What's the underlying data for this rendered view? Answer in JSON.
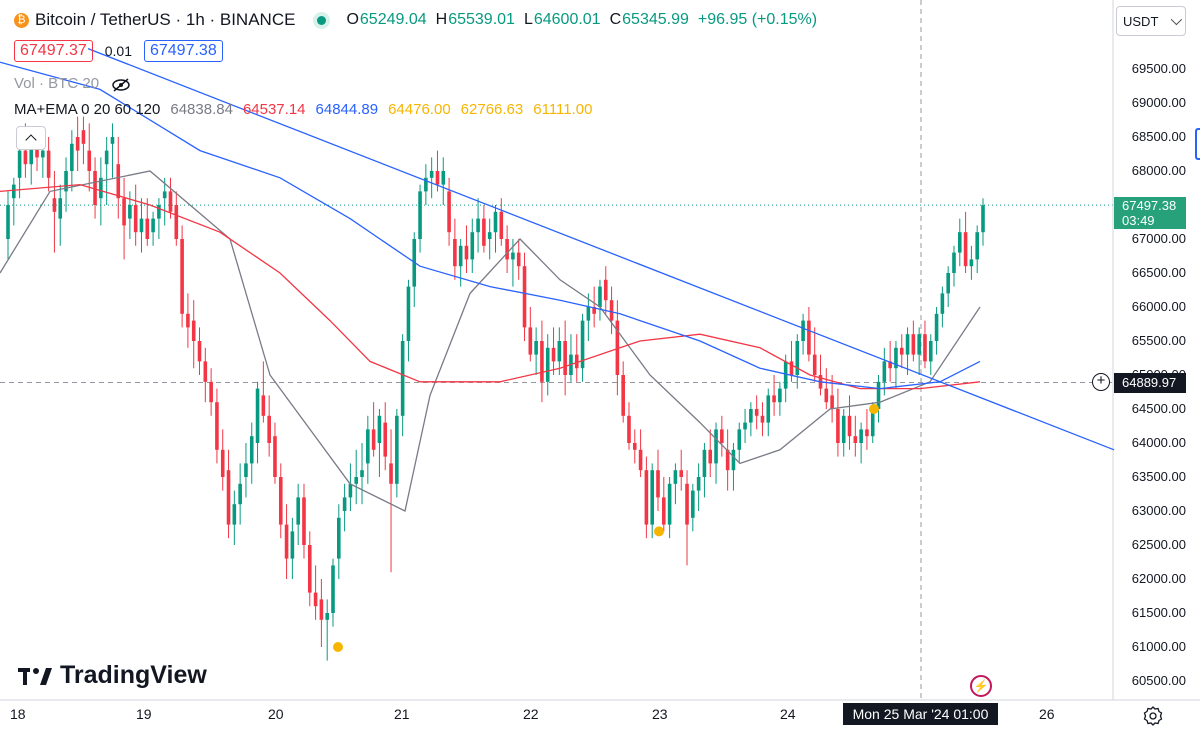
{
  "header": {
    "symbol_title": "Bitcoin / TetherUS · 1h · BINANCE",
    "ohlc": [
      {
        "label": "O",
        "value": "65249.04"
      },
      {
        "label": "H",
        "value": "65539.01"
      },
      {
        "label": "L",
        "value": "64600.01"
      },
      {
        "label": "C",
        "value": "65345.99"
      }
    ],
    "change": "+96.95 (+0.15%)",
    "bid": "67497.37",
    "spread": "0.01",
    "ask": "67497.38"
  },
  "volume_legend": "Vol · BTC 20",
  "indicator": {
    "name": "MA+EMA 0 20 60 120",
    "values": [
      "64838.84",
      "64537.14",
      "64844.89",
      "64476.00",
      "62766.63",
      "61111.00"
    ],
    "colors": [
      "#787b86",
      "#f23645",
      "#2962ff",
      "#f7b500",
      "#f7b500",
      "#f7b500"
    ]
  },
  "currency_button": "USDT",
  "last_price_tag": {
    "price": "67497.38",
    "countdown": "03:49"
  },
  "crosshair_price": "64889.97",
  "crosshair_time": "Mon 25 Mar '24   01:00",
  "brand": "TradingView",
  "colors": {
    "up": "#089981",
    "down": "#f23645",
    "ma20": "#787b86",
    "ma60": "#f23645",
    "ma120": "#2962ff",
    "trendline": "#2962ff",
    "marker": "#f7b500"
  },
  "chart_data": {
    "type": "candlestick",
    "interval": "1h",
    "y_ticks": [
      "69500.00",
      "69000.00",
      "68500.00",
      "68000.00",
      "67500.00",
      "67000.00",
      "66500.00",
      "66000.00",
      "65500.00",
      "65000.00",
      "64500.00",
      "64000.00",
      "63500.00",
      "63000.00",
      "62500.00",
      "62000.00",
      "61500.00",
      "61000.00",
      "60500.00"
    ],
    "ylim": [
      60400,
      69800
    ],
    "x_ticks": [
      "18",
      "19",
      "20",
      "21",
      "22",
      "23",
      "24",
      "26"
    ],
    "candles": [
      [
        67000,
        67700,
        66700,
        67500
      ],
      [
        67600,
        67900,
        67200,
        67800
      ],
      [
        67900,
        68500,
        67600,
        68300
      ],
      [
        68300,
        68700,
        67900,
        68100
      ],
      [
        68100,
        68400,
        67800,
        68400
      ],
      [
        68400,
        68600,
        68000,
        68200
      ],
      [
        68200,
        68600,
        67900,
        68300
      ],
      [
        68300,
        68500,
        67700,
        67900
      ],
      [
        67600,
        68000,
        66800,
        67400
      ],
      [
        67300,
        67800,
        66900,
        67600
      ],
      [
        67700,
        68200,
        67400,
        68000
      ],
      [
        68000,
        68600,
        67700,
        68400
      ],
      [
        68500,
        68800,
        68000,
        68300
      ],
      [
        68600,
        68800,
        68100,
        68400
      ],
      [
        68300,
        68700,
        67700,
        68000
      ],
      [
        68000,
        68200,
        67300,
        67500
      ],
      [
        67600,
        68200,
        67200,
        67900
      ],
      [
        68100,
        68500,
        67500,
        68300
      ],
      [
        68400,
        68700,
        67900,
        68500
      ],
      [
        68100,
        68500,
        67300,
        67600
      ],
      [
        67600,
        67900,
        66700,
        67200
      ],
      [
        67300,
        67700,
        67000,
        67500
      ],
      [
        67500,
        67800,
        66900,
        67100
      ],
      [
        67100,
        67600,
        66800,
        67300
      ],
      [
        67300,
        67600,
        66900,
        67000
      ],
      [
        67100,
        67400,
        66900,
        67300
      ],
      [
        67300,
        67600,
        67000,
        67500
      ],
      [
        67600,
        67900,
        67200,
        67700
      ],
      [
        67700,
        67900,
        67300,
        67400
      ],
      [
        67500,
        67700,
        66900,
        67000
      ],
      [
        67000,
        67200,
        65700,
        65900
      ],
      [
        65900,
        66200,
        65400,
        65700
      ],
      [
        65800,
        66100,
        65100,
        65500
      ],
      [
        65500,
        65700,
        65000,
        65200
      ],
      [
        65200,
        65400,
        64600,
        64900
      ],
      [
        64900,
        65100,
        64400,
        64600
      ],
      [
        64600,
        64800,
        63700,
        63900
      ],
      [
        63900,
        64200,
        63300,
        63500
      ],
      [
        63600,
        63900,
        62600,
        62800
      ],
      [
        62800,
        63300,
        62500,
        63100
      ],
      [
        63100,
        63700,
        62800,
        63400
      ],
      [
        63500,
        64000,
        63200,
        63700
      ],
      [
        63700,
        64300,
        63400,
        64100
      ],
      [
        64000,
        64900,
        63700,
        64800
      ],
      [
        64700,
        65200,
        64300,
        64400
      ],
      [
        64400,
        64700,
        63800,
        64000
      ],
      [
        64100,
        64300,
        63400,
        63500
      ],
      [
        63500,
        63700,
        62600,
        62800
      ],
      [
        62800,
        63100,
        62000,
        62300
      ],
      [
        62300,
        62900,
        62000,
        62700
      ],
      [
        62800,
        63400,
        62500,
        63200
      ],
      [
        63200,
        63400,
        62300,
        62500
      ],
      [
        62500,
        62700,
        61600,
        61800
      ],
      [
        61800,
        62200,
        61400,
        61600
      ],
      [
        61700,
        62000,
        61000,
        61400
      ],
      [
        61400,
        61700,
        60800,
        61500
      ],
      [
        61500,
        62300,
        61300,
        62200
      ],
      [
        62300,
        63100,
        62000,
        62900
      ],
      [
        63000,
        63400,
        62700,
        63200
      ],
      [
        63200,
        63700,
        63000,
        63400
      ],
      [
        63400,
        63900,
        63100,
        63500
      ],
      [
        63500,
        64000,
        63100,
        63600
      ],
      [
        63700,
        64400,
        63400,
        64200
      ],
      [
        64200,
        64600,
        63800,
        63900
      ],
      [
        64000,
        64500,
        63500,
        64400
      ],
      [
        64300,
        64600,
        63600,
        63800
      ],
      [
        63700,
        64200,
        62100,
        63400
      ],
      [
        63400,
        64500,
        63200,
        64400
      ],
      [
        64400,
        65600,
        64100,
        65500
      ],
      [
        65500,
        66400,
        65200,
        66300
      ],
      [
        66300,
        67100,
        66000,
        67000
      ],
      [
        67000,
        67800,
        66800,
        67700
      ],
      [
        67700,
        68100,
        67500,
        67900
      ],
      [
        67900,
        68200,
        67600,
        68000
      ],
      [
        68000,
        68300,
        67700,
        67800
      ],
      [
        67800,
        68200,
        67500,
        68000
      ],
      [
        67700,
        67900,
        66900,
        67100
      ],
      [
        67000,
        67300,
        66400,
        66600
      ],
      [
        66600,
        67000,
        66300,
        66900
      ],
      [
        66900,
        67200,
        66500,
        66700
      ],
      [
        66700,
        67300,
        66500,
        67100
      ],
      [
        67100,
        67600,
        66800,
        67300
      ],
      [
        67300,
        67500,
        66800,
        66900
      ],
      [
        67000,
        67300,
        66700,
        67100
      ],
      [
        67100,
        67500,
        66800,
        67400
      ],
      [
        67400,
        67600,
        66900,
        67000
      ],
      [
        67000,
        67200,
        66500,
        66700
      ],
      [
        66700,
        67000,
        66300,
        66800
      ],
      [
        66800,
        67000,
        66400,
        66600
      ],
      [
        66600,
        66800,
        65500,
        65700
      ],
      [
        65700,
        66000,
        65200,
        65300
      ],
      [
        65300,
        65700,
        65000,
        65500
      ],
      [
        65500,
        65800,
        64600,
        64900
      ],
      [
        64900,
        65600,
        64700,
        65400
      ],
      [
        65400,
        65700,
        65000,
        65200
      ],
      [
        65200,
        65700,
        65000,
        65500
      ],
      [
        65500,
        65800,
        64700,
        65000
      ],
      [
        65000,
        65600,
        64900,
        65300
      ],
      [
        65300,
        65600,
        64900,
        65100
      ],
      [
        65100,
        65900,
        64900,
        65800
      ],
      [
        65800,
        66200,
        65500,
        66000
      ],
      [
        66000,
        66300,
        65700,
        65900
      ],
      [
        66000,
        66400,
        65800,
        66300
      ],
      [
        66400,
        66600,
        65900,
        66100
      ],
      [
        66100,
        66300,
        65600,
        65800
      ],
      [
        65800,
        66100,
        64700,
        65000
      ],
      [
        65000,
        65200,
        64300,
        64400
      ],
      [
        64400,
        64600,
        63900,
        64000
      ],
      [
        64000,
        64200,
        63700,
        63900
      ],
      [
        63900,
        64200,
        63500,
        63600
      ],
      [
        63600,
        63800,
        62600,
        62800
      ],
      [
        62800,
        63700,
        62600,
        63600
      ],
      [
        63600,
        63900,
        63000,
        63200
      ],
      [
        63200,
        63500,
        62700,
        62800
      ],
      [
        62800,
        63500,
        62600,
        63400
      ],
      [
        63400,
        63700,
        63100,
        63600
      ],
      [
        63600,
        63900,
        63300,
        63500
      ],
      [
        63400,
        63600,
        62200,
        62800
      ],
      [
        62900,
        63400,
        62700,
        63300
      ],
      [
        63300,
        63700,
        63000,
        63500
      ],
      [
        63500,
        64000,
        63200,
        63900
      ],
      [
        63900,
        64200,
        63500,
        63700
      ],
      [
        63700,
        64300,
        63400,
        64200
      ],
      [
        64200,
        64400,
        63800,
        64000
      ],
      [
        63900,
        64200,
        63300,
        63600
      ],
      [
        63600,
        64000,
        63300,
        63900
      ],
      [
        63900,
        64300,
        63700,
        64200
      ],
      [
        64200,
        64500,
        64000,
        64300
      ],
      [
        64300,
        64600,
        64100,
        64500
      ],
      [
        64500,
        64700,
        64200,
        64400
      ],
      [
        64400,
        64600,
        64100,
        64300
      ],
      [
        64300,
        64800,
        64100,
        64700
      ],
      [
        64700,
        65000,
        64400,
        64600
      ],
      [
        64600,
        64900,
        64400,
        64800
      ],
      [
        64800,
        65300,
        64600,
        65200
      ],
      [
        65200,
        65500,
        64900,
        65000
      ],
      [
        65000,
        65600,
        64800,
        65500
      ],
      [
        65500,
        65900,
        65300,
        65800
      ],
      [
        65800,
        66000,
        65200,
        65300
      ],
      [
        65300,
        65700,
        64900,
        65000
      ],
      [
        65000,
        65300,
        64700,
        64800
      ],
      [
        64800,
        65100,
        64500,
        64600
      ],
      [
        64700,
        65000,
        64300,
        64500
      ],
      [
        64500,
        64800,
        63800,
        64000
      ],
      [
        64000,
        64500,
        63800,
        64400
      ],
      [
        64400,
        64700,
        63900,
        64100
      ],
      [
        64100,
        64400,
        63800,
        64000
      ],
      [
        64000,
        64300,
        63700,
        64200
      ],
      [
        64200,
        64500,
        63900,
        64100
      ],
      [
        64100,
        64600,
        64000,
        64500
      ],
      [
        64500,
        65000,
        64300,
        64900
      ],
      [
        64900,
        65400,
        64700,
        65200
      ],
      [
        65200,
        65500,
        64900,
        65100
      ],
      [
        65100,
        65500,
        64800,
        65400
      ],
      [
        65400,
        65600,
        65100,
        65300
      ],
      [
        65300,
        65700,
        65000,
        65600
      ],
      [
        65600,
        65800,
        65200,
        65300
      ],
      [
        65300,
        65700,
        65000,
        65600
      ],
      [
        65600,
        65800,
        65100,
        65200
      ],
      [
        65200,
        65600,
        65000,
        65500
      ],
      [
        65500,
        66000,
        65300,
        65900
      ],
      [
        65900,
        66300,
        65700,
        66200
      ],
      [
        66200,
        66600,
        66000,
        66500
      ],
      [
        66500,
        66900,
        66300,
        66800
      ],
      [
        66800,
        67300,
        66600,
        67100
      ],
      [
        67100,
        67400,
        66500,
        66600
      ],
      [
        66600,
        66900,
        66400,
        66700
      ],
      [
        66700,
        67200,
        66500,
        67100
      ],
      [
        67100,
        67600,
        66900,
        67497.38
      ]
    ],
    "ma_series": [
      {
        "name": "MA20",
        "color": "#787b86",
        "values": [
          [
            0,
            66500
          ],
          [
            50,
            67700
          ],
          [
            150,
            68000
          ],
          [
            230,
            67000
          ],
          [
            270,
            65000
          ],
          [
            310,
            64200
          ],
          [
            350,
            63400
          ],
          [
            405,
            63000
          ],
          [
            430,
            64700
          ],
          [
            470,
            66200
          ],
          [
            520,
            67000
          ],
          [
            560,
            66400
          ],
          [
            600,
            66000
          ],
          [
            650,
            65000
          ],
          [
            700,
            64300
          ],
          [
            740,
            63700
          ],
          [
            780,
            63900
          ],
          [
            830,
            64500
          ],
          [
            880,
            64600
          ],
          [
            930,
            64900
          ],
          [
            980,
            66000
          ]
        ]
      },
      {
        "name": "MA60",
        "color": "#f23645",
        "values": [
          [
            0,
            67700
          ],
          [
            80,
            67800
          ],
          [
            150,
            67500
          ],
          [
            220,
            67100
          ],
          [
            280,
            66500
          ],
          [
            330,
            65800
          ],
          [
            370,
            65200
          ],
          [
            420,
            64900
          ],
          [
            500,
            64900
          ],
          [
            560,
            65100
          ],
          [
            640,
            65500
          ],
          [
            700,
            65600
          ],
          [
            760,
            65400
          ],
          [
            810,
            65000
          ],
          [
            860,
            64800
          ],
          [
            920,
            64800
          ],
          [
            980,
            64900
          ]
        ]
      },
      {
        "name": "MA120",
        "color": "#2962ff",
        "values": [
          [
            0,
            69600
          ],
          [
            100,
            69200
          ],
          [
            200,
            68300
          ],
          [
            280,
            67900
          ],
          [
            350,
            67300
          ],
          [
            420,
            66600
          ],
          [
            490,
            66300
          ],
          [
            560,
            66100
          ],
          [
            620,
            65900
          ],
          [
            700,
            65500
          ],
          [
            760,
            65100
          ],
          [
            820,
            64900
          ],
          [
            880,
            64800
          ],
          [
            940,
            64900
          ],
          [
            980,
            65200
          ]
        ]
      }
    ],
    "trendline": [
      [
        88,
        69800
      ],
      [
        1114,
        63900
      ]
    ],
    "markers": [
      [
        338,
        61000
      ],
      [
        659,
        62700
      ],
      [
        874,
        64500
      ]
    ],
    "last_price": 67497.38,
    "crosshair": {
      "price": 64889.97,
      "time": "Mon 25 Mar '24 01:00"
    }
  }
}
